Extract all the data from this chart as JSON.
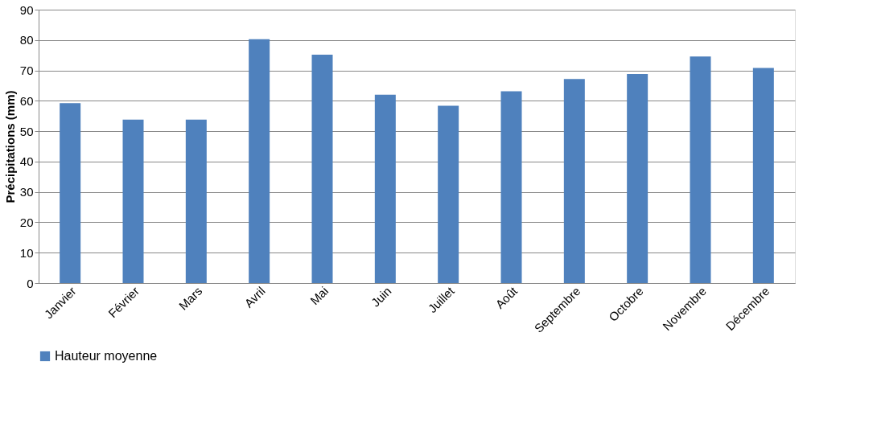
{
  "chart_data": {
    "type": "bar",
    "ylabel": "Précipitations (mm)",
    "categories": [
      "Janvier",
      "Février",
      "Mars",
      "Avril",
      "Mai",
      "Juin",
      "Juillet",
      "Août",
      "Septembre",
      "Octobre",
      "Novembre",
      "Décembre"
    ],
    "series": [
      {
        "name": "Hauteur moyenne",
        "color": "#4f81bd",
        "values": [
          59.2,
          53.8,
          53.8,
          80.3,
          75.2,
          62.0,
          58.4,
          63.1,
          67.2,
          68.8,
          74.6,
          70.8
        ]
      }
    ],
    "ylim": [
      0,
      90
    ],
    "yticks": [
      0,
      10,
      20,
      30,
      40,
      50,
      60,
      70,
      80,
      90
    ],
    "grid": "y",
    "legend": "bottom"
  }
}
